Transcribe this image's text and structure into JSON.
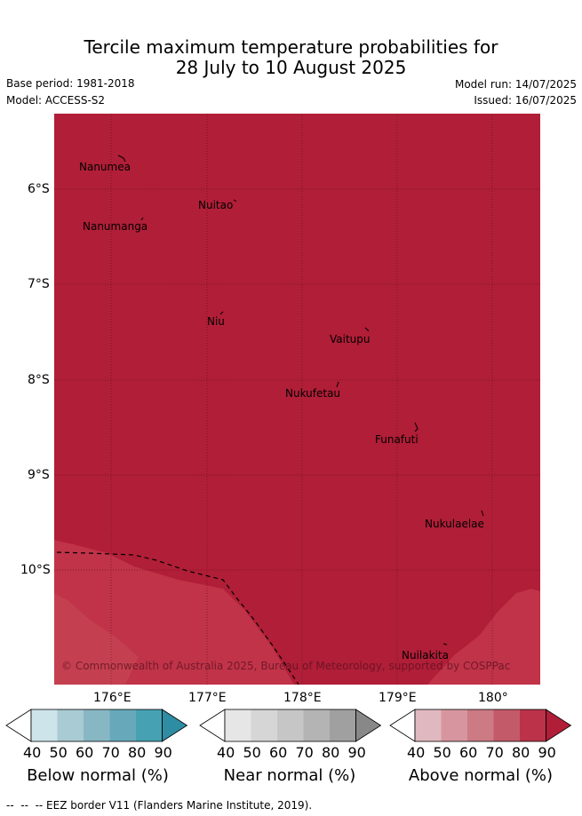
{
  "header": {
    "title_line1": "Tercile maximum temperature probabilities for",
    "title_line2": "28 July to 10 August 2025",
    "base_period": "Base period: 1981-2018",
    "model": "Model: ACCESS-S2",
    "model_run": "Model run: 14/07/2025",
    "issued": "Issued: 16/07/2025"
  },
  "map": {
    "background_color": "#b01e37",
    "lower_zone_color": "#c03348",
    "lower_zone_color2": "#c44050",
    "lat_ticks": [
      "6°S",
      "7°S",
      "8°S",
      "9°S",
      "10°S"
    ],
    "lon_ticks": [
      "176°E",
      "177°E",
      "178°E",
      "179°E",
      "180°"
    ],
    "places": [
      {
        "name": "Nanumea"
      },
      {
        "name": "Nuitao"
      },
      {
        "name": "Nanumanga"
      },
      {
        "name": "Niu"
      },
      {
        "name": "Vaitupu"
      },
      {
        "name": "Nukufetau"
      },
      {
        "name": "Funafuti"
      },
      {
        "name": "Nukulaelae"
      },
      {
        "name": "Nuilakita"
      }
    ],
    "copyright": "© Commonwealth of Australia 2025, Bureau of Meteorology, supported by COSPPac"
  },
  "colorbars": [
    {
      "label": "Below normal (%)",
      "ticks": [
        "40",
        "50",
        "60",
        "70",
        "80",
        "90"
      ],
      "colors": [
        "#ffffff",
        "#cde4ea",
        "#a9cbd3",
        "#88b7c4",
        "#67a9ba",
        "#46a1b2",
        "#2e8da3"
      ]
    },
    {
      "label": "Near normal (%)",
      "ticks": [
        "40",
        "50",
        "60",
        "70",
        "80",
        "90"
      ],
      "colors": [
        "#ffffff",
        "#e6e6e6",
        "#d6d6d6",
        "#c6c6c6",
        "#b4b4b4",
        "#a0a0a0",
        "#888888"
      ]
    },
    {
      "label": "Above normal (%)",
      "ticks": [
        "40",
        "50",
        "60",
        "70",
        "80",
        "90"
      ],
      "colors": [
        "#ffffff",
        "#e0b8bf",
        "#d7969f",
        "#cc7a84",
        "#c35a69",
        "#bb3249",
        "#b01e37"
      ]
    }
  ],
  "footer": {
    "legend_text": "-- EEZ border V11 (Flanders Marine Institute, 2019)."
  }
}
